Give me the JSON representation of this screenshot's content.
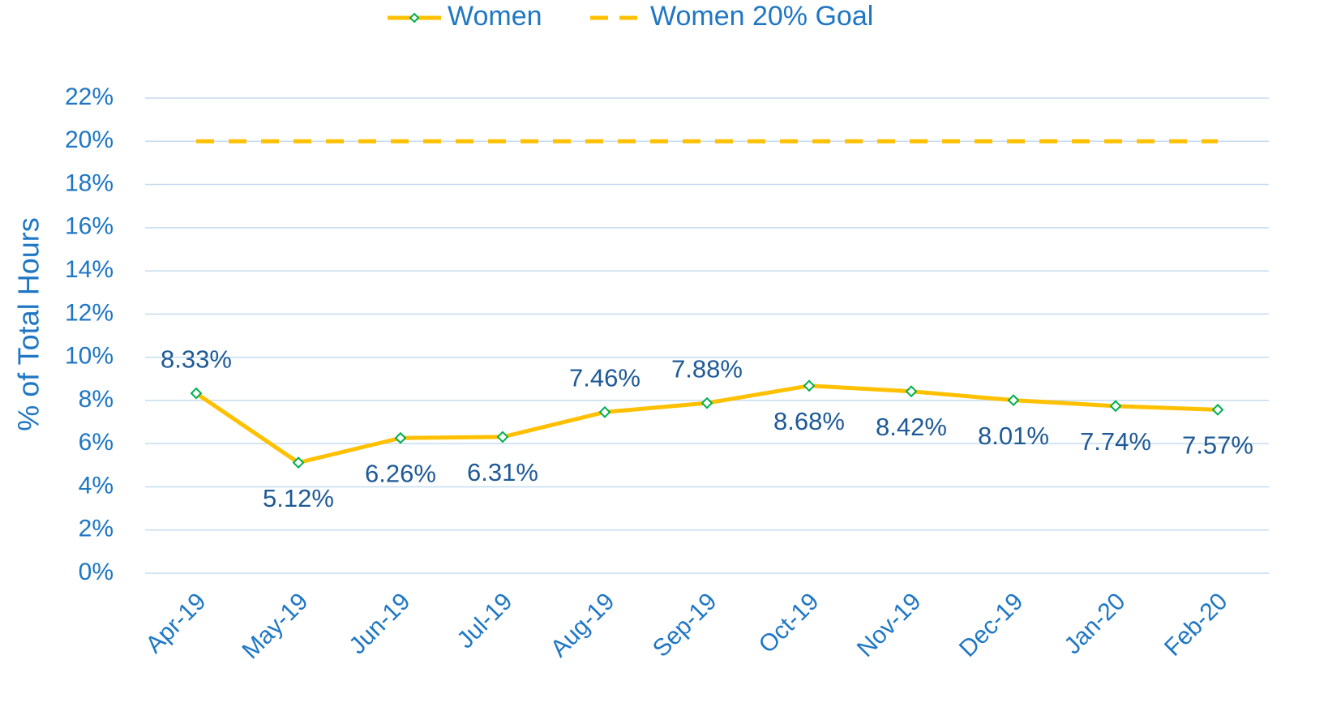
{
  "chart_data": {
    "type": "line",
    "y_axis_label": "% of Total Hours",
    "categories": [
      "Apr-19",
      "May-19",
      "Jun-19",
      "Jul-19",
      "Aug-19",
      "Sep-19",
      "Oct-19",
      "Nov-19",
      "Dec-19",
      "Jan-20",
      "Feb-20"
    ],
    "series": [
      {
        "name": "Women",
        "color": "#ffc000",
        "marker": "diamond",
        "marker_color": "#00b050",
        "style": "solid",
        "values": [
          8.33,
          5.12,
          6.26,
          6.31,
          7.46,
          7.88,
          8.68,
          8.42,
          8.01,
          7.74,
          7.57
        ],
        "value_labels": [
          "8.33%",
          "5.12%",
          "6.26%",
          "6.31%",
          "7.46%",
          "7.88%",
          "8.68%",
          "8.42%",
          "8.01%",
          "7.74%",
          "7.57%"
        ]
      },
      {
        "name": "Women 20% Goal",
        "color": "#ffc000",
        "style": "dashed",
        "values": [
          20,
          20,
          20,
          20,
          20,
          20,
          20,
          20,
          20,
          20,
          20
        ]
      }
    ],
    "ylim": [
      0,
      22
    ],
    "yticks": [
      {
        "value": 0,
        "label": "0%"
      },
      {
        "value": 2,
        "label": "2%"
      },
      {
        "value": 4,
        "label": "4%"
      },
      {
        "value": 6,
        "label": "6%"
      },
      {
        "value": 8,
        "label": "8%"
      },
      {
        "value": 10,
        "label": "10%"
      },
      {
        "value": 12,
        "label": "12%"
      },
      {
        "value": 14,
        "label": "14%"
      },
      {
        "value": 16,
        "label": "16%"
      },
      {
        "value": 18,
        "label": "18%"
      },
      {
        "value": 20,
        "label": "20%"
      },
      {
        "value": 22,
        "label": "22%"
      }
    ],
    "grid": true,
    "legend": "top"
  }
}
